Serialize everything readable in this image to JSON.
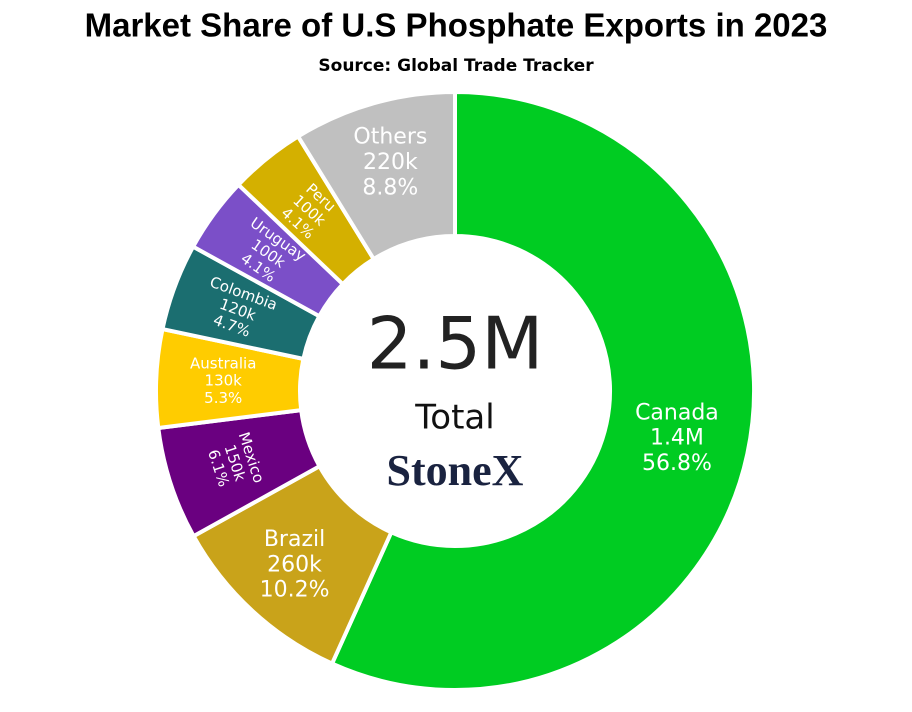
{
  "chart_data": {
    "type": "donut",
    "title": "Market Share of U.S Phosphate Exports in 2023",
    "subtitle": "Source: Global Trade Tracker",
    "categories": [
      "Canada",
      "Brazil",
      "Mexico",
      "Australia",
      "Colombia",
      "Uruguay",
      "Peru",
      "Others"
    ],
    "values": [
      56.8,
      10.2,
      6.1,
      5.3,
      4.7,
      4.1,
      4.1,
      8.8
    ],
    "value_labels": [
      "56.8%",
      "10.2%",
      "6.1%",
      "5.3%",
      "4.7%",
      "4.1%",
      "4.1%",
      "8.8%"
    ],
    "amounts": [
      1400000,
      260000,
      150000,
      130000,
      120000,
      100000,
      100000,
      220000
    ],
    "amount_labels": [
      "1.4M",
      "260k",
      "150k",
      "130k",
      "120k",
      "100k",
      "100k",
      "220k"
    ],
    "colors": [
      "#00cc22",
      "#c9a31a",
      "#6a0080",
      "#ffcc00",
      "#1b6e70",
      "#7b4fc8",
      "#d4b000",
      "#c0c0c0"
    ],
    "center_value": "2.5M",
    "center_caption": "Total",
    "logo": "StoneX"
  }
}
